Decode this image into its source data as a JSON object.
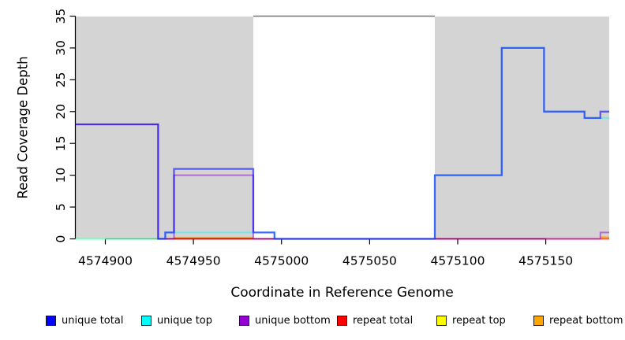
{
  "chart_data": {
    "type": "line",
    "subtype": "step-coverage-plot",
    "xlabel": "Coordinate in Reference Genome",
    "ylabel": "Read Coverage Depth",
    "xlim": [
      4574883,
      4575186
    ],
    "ylim": [
      0,
      35
    ],
    "xticks": [
      4574900,
      4574950,
      4575000,
      4575050,
      4575100,
      4575150
    ],
    "yticks": [
      0,
      5,
      10,
      15,
      20,
      25,
      30,
      35
    ],
    "grid": "off",
    "bands": {
      "label": "repeat-region-shading",
      "color": "#d4d4d4",
      "regions": [
        [
          4574883,
          4574984
        ],
        [
          4575087,
          4575186
        ]
      ]
    },
    "boundary_line": {
      "y": 35,
      "x1": 4574984,
      "x2": 4575087,
      "color": "#747474"
    },
    "series": [
      {
        "name": "repeat top",
        "color": "rgba(255,255,0,0.55)",
        "width": 2,
        "runs": [
          [
            [
              4574883,
              0
            ],
            [
              4574930,
              0
            ]
          ]
        ]
      },
      {
        "name": "repeat bottom",
        "color": "rgba(255,165,0,0.9)",
        "width": 2,
        "runs": [
          [
            [
              4574939,
              0.2
            ],
            [
              4574984,
              0.2
            ]
          ],
          [
            [
              4575181,
              0.25
            ],
            [
              4575186,
              0.25
            ]
          ]
        ]
      },
      {
        "name": "repeat total",
        "color": "rgba(255,0,0,0.62)",
        "width": 2,
        "runs": [
          [
            [
              4574930,
              0
            ],
            [
              4575186,
              0
            ]
          ]
        ]
      },
      {
        "name": "unique bottom",
        "color": "rgba(148,0,211,0.5)",
        "width": 2,
        "runs": [
          [
            [
              4574883,
              18
            ],
            [
              4574930,
              18
            ],
            [
              4574930,
              0
            ],
            [
              4574939,
              0
            ],
            [
              4574939,
              10
            ],
            [
              4574984,
              10
            ],
            [
              4574984,
              0
            ],
            [
              4575181,
              0
            ],
            [
              4575181,
              1
            ],
            [
              4575186,
              1
            ]
          ]
        ]
      },
      {
        "name": "unique top",
        "color": "rgba(0,255,255,0.5)",
        "width": 2,
        "runs": [
          [
            [
              4574883,
              0
            ],
            [
              4574934,
              0
            ],
            [
              4574934,
              1
            ],
            [
              4574996,
              1
            ],
            [
              4574996,
              0
            ],
            [
              4575087,
              0
            ],
            [
              4575087,
              10
            ],
            [
              4575125,
              10
            ],
            [
              4575125,
              30
            ],
            [
              4575149,
              30
            ],
            [
              4575149,
              20
            ],
            [
              4575172,
              20
            ],
            [
              4575172,
              19
            ],
            [
              4575186,
              19
            ]
          ]
        ]
      },
      {
        "name": "unique total",
        "color": "rgba(0,0,255,0.58)",
        "width": 2.3,
        "runs": [
          [
            [
              4574883,
              18
            ],
            [
              4574930,
              18
            ],
            [
              4574930,
              0
            ],
            [
              4574934,
              0
            ],
            [
              4574934,
              1
            ],
            [
              4574939,
              1
            ],
            [
              4574939,
              11
            ],
            [
              4574984,
              11
            ],
            [
              4574984,
              1
            ],
            [
              4574996,
              1
            ],
            [
              4574996,
              0
            ],
            [
              4575087,
              0
            ],
            [
              4575087,
              10
            ],
            [
              4575125,
              10
            ],
            [
              4575125,
              30
            ],
            [
              4575149,
              30
            ],
            [
              4575149,
              20
            ],
            [
              4575172,
              20
            ],
            [
              4575172,
              19
            ],
            [
              4575181,
              19
            ],
            [
              4575181,
              20
            ],
            [
              4575186,
              20
            ]
          ]
        ]
      }
    ],
    "legend": {
      "position": "bottom",
      "items": [
        {
          "label": "unique total",
          "color": "#0000FF"
        },
        {
          "label": "unique top",
          "color": "#00FFFF"
        },
        {
          "label": "unique bottom",
          "color": "#9400D3"
        },
        {
          "label": "repeat total",
          "color": "#FF0000"
        },
        {
          "label": "repeat top",
          "color": "#FFFF00"
        },
        {
          "label": "repeat bottom",
          "color": "#FFA500"
        }
      ]
    }
  }
}
